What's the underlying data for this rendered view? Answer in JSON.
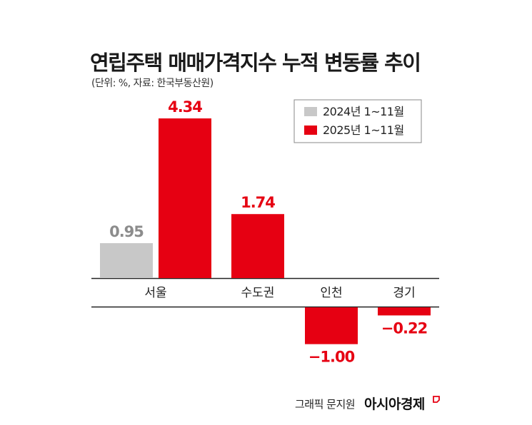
{
  "chart_data": {
    "type": "bar",
    "title": "연립주택 매매가격지수 누적 변동률 추이",
    "subtitle": "(단위: %, 자료: 한국부동산원)",
    "categories": [
      "서울",
      "수도권",
      "인천",
      "경기"
    ],
    "series": [
      {
        "name": "2024년 1~11월",
        "color": "#c8c8c8",
        "label_color": "#8c8c8c",
        "values": [
          0.95,
          null,
          null,
          null
        ],
        "labels": [
          "0.95",
          null,
          null,
          null
        ]
      },
      {
        "name": "2025년 1~11월",
        "color": "#e60012",
        "label_color": "#e60012",
        "values": [
          4.34,
          1.74,
          -1.0,
          -0.22
        ],
        "labels": [
          "4.34",
          "1.74",
          "−1.00",
          "−0.22"
        ]
      }
    ],
    "legend_position": "top-right",
    "grid": false,
    "xlabel": "",
    "ylabel": ""
  },
  "footer": {
    "credit": "그래픽 문지원",
    "logo": "아시아경제"
  }
}
